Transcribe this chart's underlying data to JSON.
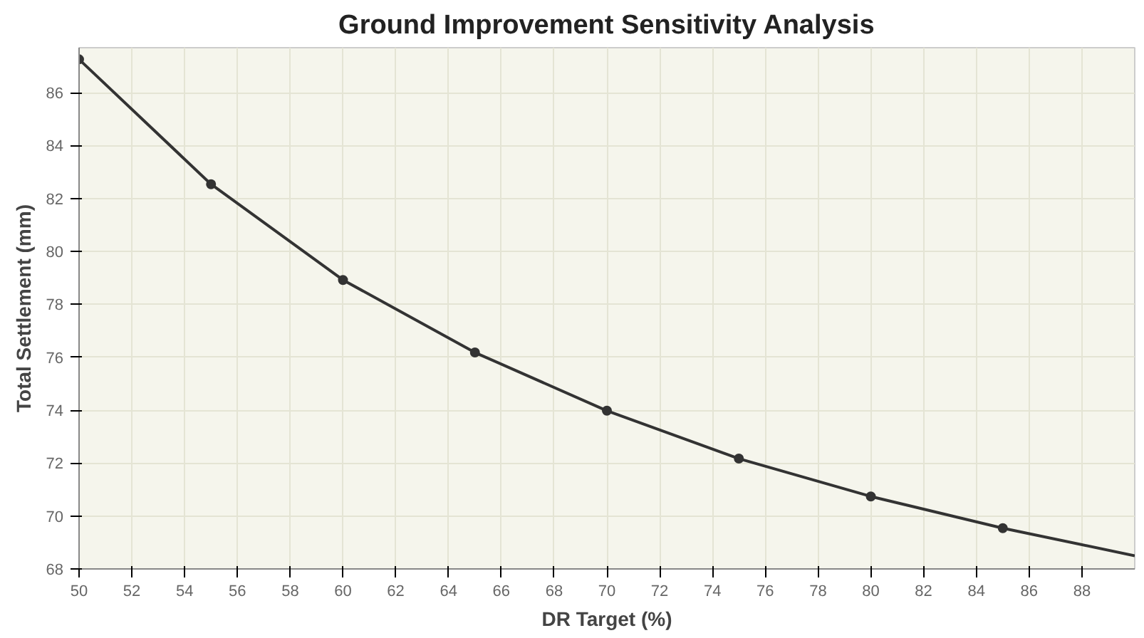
{
  "chart_data": {
    "type": "line",
    "title": "Ground Improvement Sensitivity Analysis",
    "xlabel": "DR Target (%)",
    "ylabel": "Total Settlement (mm)",
    "xlim": [
      50,
      90
    ],
    "ylim": [
      68,
      87.7
    ],
    "xticks": [
      50,
      52,
      54,
      56,
      58,
      60,
      62,
      64,
      66,
      68,
      70,
      72,
      74,
      76,
      78,
      80,
      82,
      84,
      86,
      88
    ],
    "yticks": [
      68,
      70,
      72,
      74,
      76,
      78,
      80,
      82,
      84,
      86
    ],
    "grid": true,
    "series": [
      {
        "color": "#333333",
        "marker": "none",
        "x": [
          50,
          55,
          60,
          65,
          70,
          75,
          80,
          85,
          90
        ],
        "values": [
          87.26,
          82.54,
          78.92,
          76.18,
          73.98,
          72.17,
          70.74,
          69.54,
          68.5
        ]
      },
      {
        "type": "scatter",
        "color": "#333333",
        "marker": "circle",
        "x": [
          50,
          55,
          60,
          65,
          70,
          75,
          80,
          85
        ],
        "values": [
          87.26,
          82.54,
          78.92,
          76.18,
          73.98,
          72.17,
          70.74,
          69.54
        ]
      }
    ]
  }
}
